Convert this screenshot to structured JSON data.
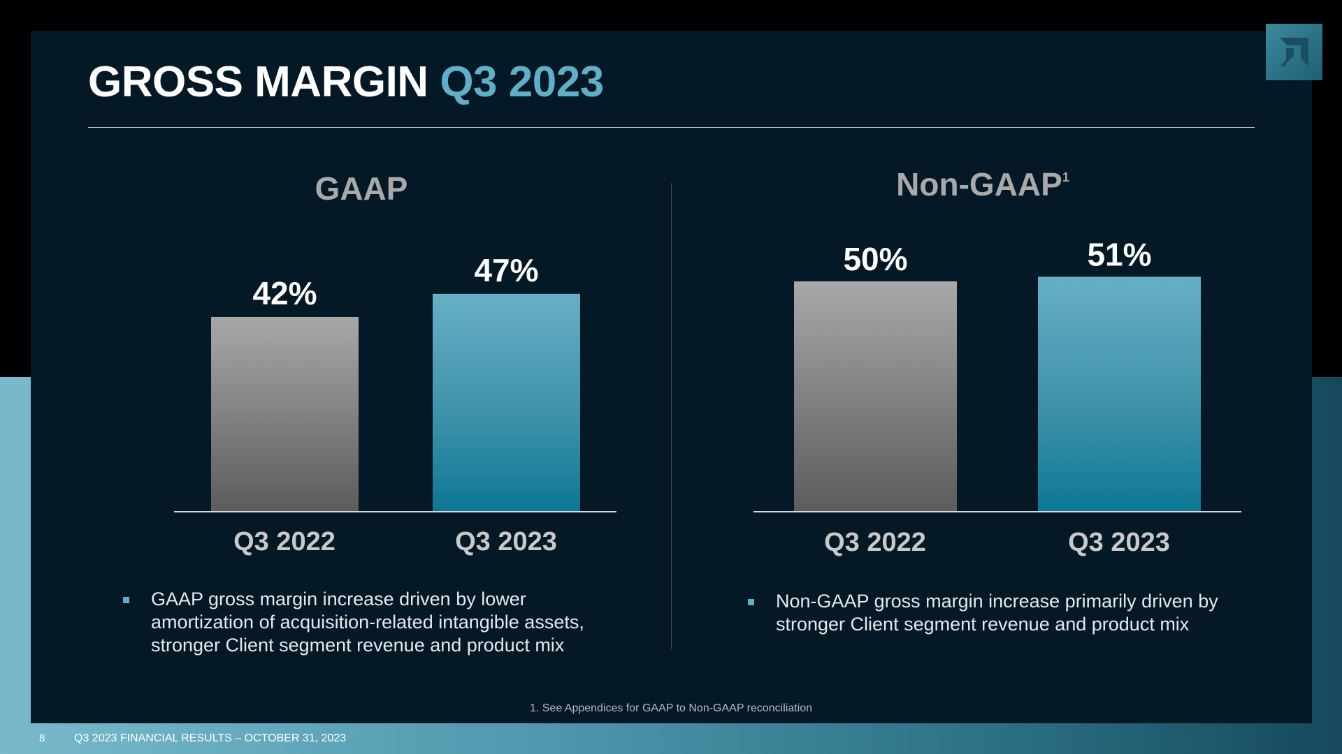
{
  "title": {
    "main": "GROSS MARGIN",
    "accent": "Q3 2023"
  },
  "brand_color": "#5fb0c6",
  "chart_data": [
    {
      "type": "bar",
      "title": "GAAP",
      "title_sup": "",
      "categories": [
        "Q3 2022",
        "Q3 2023"
      ],
      "values": [
        42,
        47
      ],
      "data_labels": [
        "42%",
        "47%"
      ],
      "bar_colors": [
        "gray-gradient",
        "teal-gradient"
      ],
      "xlabel": "",
      "ylabel": "",
      "grid": false,
      "legend": "none"
    },
    {
      "type": "bar",
      "title": "Non-GAAP",
      "title_sup": "1",
      "categories": [
        "Q3 2022",
        "Q3 2023"
      ],
      "values": [
        50,
        51
      ],
      "data_labels": [
        "50%",
        "51%"
      ],
      "bar_colors": [
        "gray-gradient",
        "teal-gradient"
      ],
      "xlabel": "",
      "ylabel": "",
      "grid": false,
      "legend": "none"
    }
  ],
  "bullets": {
    "gaap": "GAAP gross margin increase driven by lower amortization of acquisition-related intangible assets, stronger Client segment revenue and product mix",
    "non_gaap": "Non-GAAP gross margin increase primarily driven by stronger Client segment revenue and product mix"
  },
  "footnote": "1. See Appendices for GAAP to Non-GAAP reconciliation",
  "footer": {
    "page_number": "8",
    "text": "Q3 2023 FINANCIAL RESULTS – OCTOBER 31, 2023"
  },
  "logo_icon": "amd-arrow-icon"
}
